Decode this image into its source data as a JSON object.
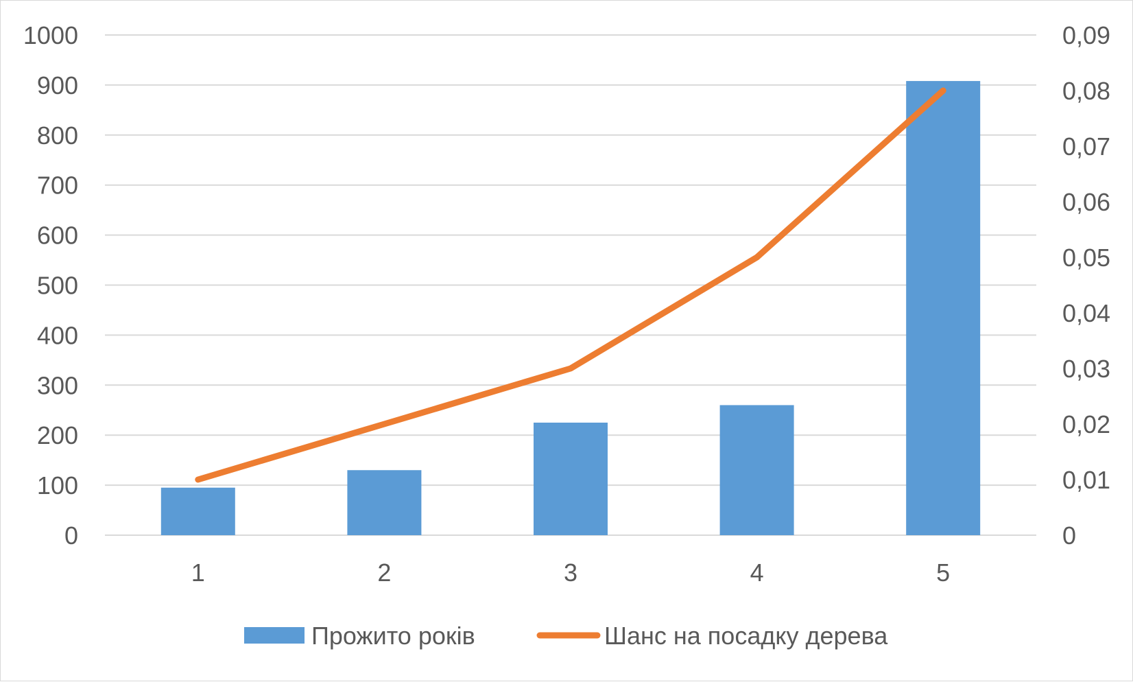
{
  "chart_data": {
    "type": "bar",
    "categories": [
      "1",
      "2",
      "3",
      "4",
      "5"
    ],
    "series": [
      {
        "name": "Прожито років",
        "type": "bar",
        "axis": "left",
        "values": [
          95,
          130,
          225,
          260,
          908
        ],
        "color": "#5b9bd5"
      },
      {
        "name": "Шанс на посадку дерева",
        "type": "line",
        "axis": "right",
        "values": [
          0.01,
          0.02,
          0.03,
          0.05,
          0.08
        ],
        "color": "#ed7d31"
      }
    ],
    "y_left": {
      "ylim": [
        0,
        1000
      ],
      "ticks": [
        0,
        100,
        200,
        300,
        400,
        500,
        600,
        700,
        800,
        900,
        1000
      ],
      "tick_labels": [
        "0",
        "100",
        "200",
        "300",
        "400",
        "500",
        "600",
        "700",
        "800",
        "900",
        "1000"
      ]
    },
    "y_right": {
      "ylim": [
        0,
        0.09
      ],
      "ticks": [
        0,
        0.01,
        0.02,
        0.03,
        0.04,
        0.05,
        0.06,
        0.07,
        0.08,
        0.09
      ],
      "tick_labels": [
        "0",
        "0,01",
        "0,02",
        "0,03",
        "0,04",
        "0,05",
        "0,06",
        "0,07",
        "0,08",
        "0,09"
      ]
    },
    "grid": true,
    "legend_position": "bottom",
    "gridline_color": "#d9d9d9"
  }
}
